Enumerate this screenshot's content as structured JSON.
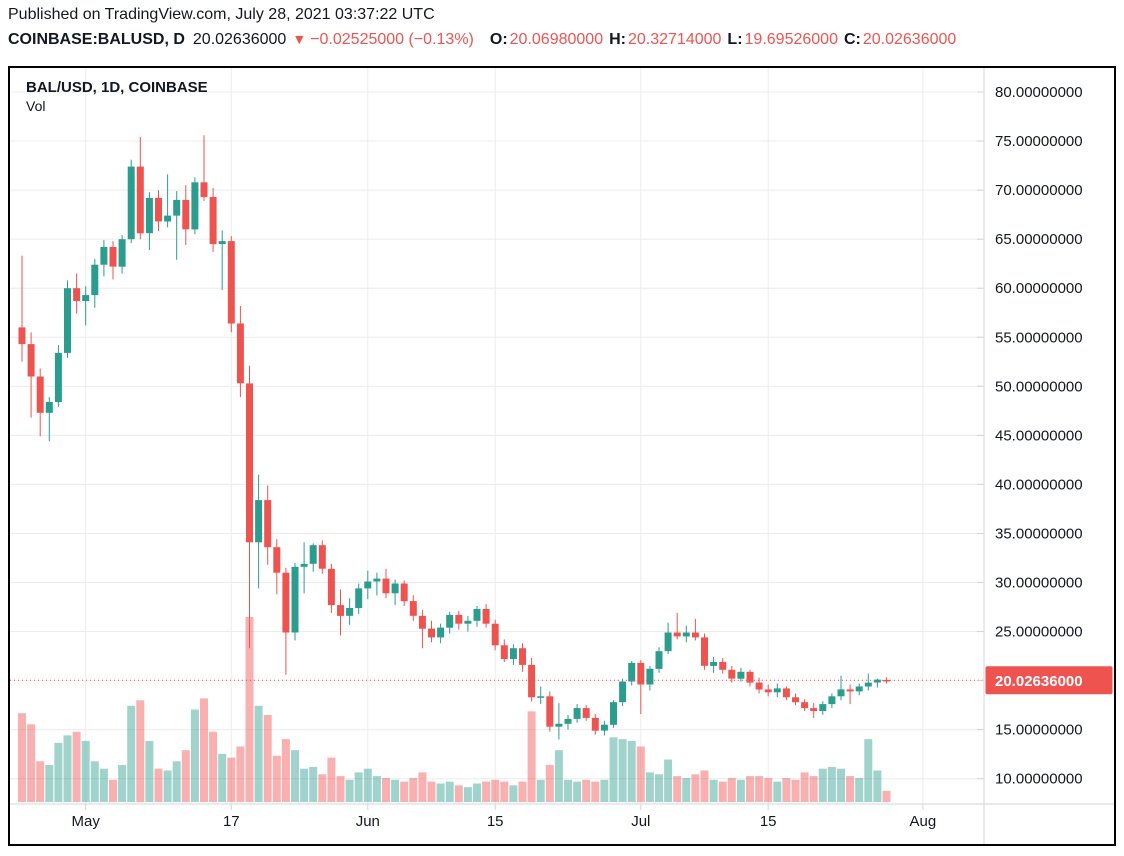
{
  "page": {
    "published_line": "Published on TradingView.com, July 28, 2021 03:37:22 UTC"
  },
  "quote_bar": {
    "symbol": "COINBASE:BALUSD, D",
    "last": "20.02636000",
    "down_arrow": "▼",
    "change": "−0.02525000 (−0.13%)",
    "ohlc": [
      {
        "label": "O:",
        "value": "20.06980000"
      },
      {
        "label": "H:",
        "value": "20.32714000"
      },
      {
        "label": "L:",
        "value": "19.69526000"
      },
      {
        "label": "C:",
        "value": "20.02636000"
      }
    ]
  },
  "chart": {
    "legend_symbol": "BAL/USD, 1D, COINBASE",
    "legend_study": "Vol",
    "price_axis_label": "20.02636000",
    "colors": {
      "up": "#2a9d8f",
      "down": "#ef5350",
      "price_line": "#ef5350",
      "price_label_bg": "#ef5350",
      "text": "#131722",
      "grid": "#ececec",
      "axis_line": "#d1d4dc",
      "border": "#000000"
    }
  },
  "chart_data": {
    "type": "candlestick",
    "title": "BAL/USD, 1D, COINBASE",
    "symbol": "BAL/USD",
    "interval": "1D",
    "exchange": "COINBASE",
    "current_price": 20.02636,
    "legend_position": "top-left",
    "grid": true,
    "y_axis": {
      "side": "right",
      "ticks": [
        80,
        75,
        70,
        65,
        60,
        55,
        50,
        45,
        40,
        35,
        30,
        25,
        20,
        15,
        10
      ],
      "decimals": 8,
      "visible_range": [
        7.4,
        82.2
      ]
    },
    "x_axis": {
      "start_date": "Apr 24",
      "end_date": "Jul 28",
      "labels": [
        {
          "day_index": 7,
          "label": "May"
        },
        {
          "day_index": 23,
          "label": "17"
        },
        {
          "day_index": 38,
          "label": "Jun"
        },
        {
          "day_index": 52,
          "label": "15"
        },
        {
          "day_index": 68,
          "label": "Jul"
        },
        {
          "day_index": 82,
          "label": "15"
        },
        {
          "day_index": 99,
          "label": "Aug"
        }
      ]
    },
    "volume_unit": "relative (0-100, axis unlabeled)",
    "candles_format": [
      "date",
      "open",
      "high",
      "low",
      "close",
      "volume_rel"
    ],
    "candles": [
      [
        "Apr 24",
        56.0,
        63.3,
        52.5,
        54.3,
        48
      ],
      [
        "Apr 25",
        54.3,
        55.5,
        46.8,
        51.0,
        42
      ],
      [
        "Apr 26",
        51.0,
        51.8,
        44.9,
        47.3,
        22
      ],
      [
        "Apr 27",
        47.3,
        48.9,
        44.4,
        48.4,
        20
      ],
      [
        "Apr 28",
        48.4,
        54.2,
        47.9,
        53.4,
        32
      ],
      [
        "Apr 29",
        53.4,
        60.8,
        52.9,
        60.0,
        36
      ],
      [
        "Apr 30",
        60.0,
        61.5,
        57.4,
        58.7,
        38
      ],
      [
        "May 1",
        58.7,
        60.2,
        56.2,
        59.3,
        33
      ],
      [
        "May 2",
        59.3,
        63.0,
        58.0,
        62.4,
        22
      ],
      [
        "May 3",
        62.4,
        64.9,
        61.2,
        64.2,
        18
      ],
      [
        "May 4",
        64.2,
        64.8,
        60.9,
        62.2,
        12
      ],
      [
        "May 5",
        62.2,
        65.4,
        61.5,
        65.0,
        20
      ],
      [
        "May 6",
        65.0,
        73.1,
        64.6,
        72.4,
        52
      ],
      [
        "May 7",
        72.4,
        75.4,
        65.0,
        65.6,
        55
      ],
      [
        "May 8",
        65.6,
        69.8,
        63.9,
        69.2,
        33
      ],
      [
        "May 9",
        69.2,
        70.0,
        65.8,
        66.8,
        18
      ],
      [
        "May 10",
        66.8,
        71.6,
        66.2,
        67.4,
        17
      ],
      [
        "May 11",
        67.4,
        69.9,
        62.9,
        69.0,
        22
      ],
      [
        "May 12",
        69.0,
        70.5,
        64.4,
        66.0,
        28
      ],
      [
        "May 13",
        66.0,
        71.3,
        65.5,
        70.8,
        50
      ],
      [
        "May 14",
        70.8,
        75.6,
        68.9,
        69.3,
        56
      ],
      [
        "May 15",
        69.3,
        70.2,
        63.7,
        64.5,
        38
      ],
      [
        "May 16",
        64.5,
        65.9,
        59.8,
        64.8,
        26
      ],
      [
        "May 17",
        64.8,
        65.3,
        55.5,
        56.4,
        24
      ],
      [
        "May 18",
        56.4,
        58.2,
        48.9,
        50.3,
        30
      ],
      [
        "May 19",
        50.3,
        52.1,
        23.3,
        34.1,
        100
      ],
      [
        "May 20",
        34.1,
        41.0,
        29.4,
        38.4,
        52
      ],
      [
        "May 21",
        38.4,
        39.9,
        31.8,
        33.6,
        47
      ],
      [
        "May 22",
        33.6,
        34.4,
        28.8,
        31.0,
        25
      ],
      [
        "May 23",
        31.0,
        31.5,
        20.6,
        24.9,
        34
      ],
      [
        "May 24",
        24.9,
        32.0,
        24.1,
        31.6,
        28
      ],
      [
        "May 25",
        31.6,
        34.1,
        28.9,
        31.9,
        18
      ],
      [
        "May 26",
        31.9,
        34.0,
        31.1,
        33.8,
        19
      ],
      [
        "May 27",
        33.8,
        34.3,
        30.9,
        31.4,
        15
      ],
      [
        "May 28",
        31.4,
        31.9,
        26.9,
        27.7,
        24
      ],
      [
        "May 29",
        27.7,
        29.3,
        24.6,
        26.6,
        14
      ],
      [
        "May 30",
        26.6,
        28.4,
        25.7,
        27.4,
        12
      ],
      [
        "May 31",
        27.4,
        29.9,
        26.8,
        29.4,
        16
      ],
      [
        "Jun 1",
        29.4,
        31.2,
        28.3,
        30.1,
        18
      ],
      [
        "Jun 2",
        30.1,
        31.0,
        28.7,
        30.4,
        14
      ],
      [
        "Jun 3",
        30.4,
        31.4,
        28.4,
        28.9,
        13
      ],
      [
        "Jun 4",
        28.9,
        30.3,
        27.7,
        29.9,
        12
      ],
      [
        "Jun 5",
        29.9,
        30.2,
        27.6,
        28.1,
        11
      ],
      [
        "Jun 6",
        28.1,
        28.7,
        26.1,
        26.6,
        13
      ],
      [
        "Jun 7",
        26.6,
        27.2,
        23.3,
        25.3,
        16
      ],
      [
        "Jun 8",
        25.3,
        26.1,
        23.9,
        24.4,
        11
      ],
      [
        "Jun 9",
        24.4,
        25.8,
        23.8,
        25.4,
        10
      ],
      [
        "Jun 10",
        25.4,
        27.0,
        24.8,
        26.7,
        11
      ],
      [
        "Jun 11",
        26.7,
        27.1,
        25.2,
        25.8,
        9
      ],
      [
        "Jun 12",
        25.8,
        26.6,
        25.0,
        26.1,
        8
      ],
      [
        "Jun 13",
        26.1,
        27.6,
        25.5,
        27.3,
        10
      ],
      [
        "Jun 14",
        27.3,
        27.8,
        25.4,
        25.8,
        11
      ],
      [
        "Jun 15",
        25.8,
        26.2,
        23.1,
        23.6,
        12
      ],
      [
        "Jun 16",
        23.6,
        24.2,
        21.9,
        22.2,
        11
      ],
      [
        "Jun 17",
        22.2,
        23.7,
        21.6,
        23.3,
        9
      ],
      [
        "Jun 18",
        23.3,
        23.8,
        20.9,
        21.6,
        11
      ],
      [
        "Jun 19",
        21.6,
        22.3,
        17.9,
        18.3,
        49
      ],
      [
        "Jun 20",
        18.3,
        19.4,
        17.6,
        18.4,
        12
      ],
      [
        "Jun 21",
        18.4,
        18.9,
        14.8,
        15.3,
        20
      ],
      [
        "Jun 22",
        15.3,
        17.7,
        14.0,
        15.6,
        28
      ],
      [
        "Jun 23",
        15.6,
        16.5,
        15.0,
        16.1,
        12
      ],
      [
        "Jun 24",
        16.1,
        17.6,
        15.7,
        17.2,
        11
      ],
      [
        "Jun 25",
        17.2,
        17.5,
        15.9,
        16.2,
        12
      ],
      [
        "Jun 26",
        16.2,
        16.6,
        14.5,
        14.9,
        11
      ],
      [
        "Jun 27",
        14.9,
        15.9,
        14.4,
        15.5,
        12
      ],
      [
        "Jun 28",
        15.5,
        18.0,
        15.2,
        17.8,
        35
      ],
      [
        "Jun 29",
        17.8,
        20.2,
        17.4,
        19.9,
        34
      ],
      [
        "Jun 30",
        19.9,
        22.0,
        19.5,
        21.8,
        33
      ],
      [
        "Jul 1",
        21.8,
        22.1,
        16.6,
        19.6,
        30
      ],
      [
        "Jul 2",
        19.6,
        21.5,
        19.0,
        21.2,
        16
      ],
      [
        "Jul 3",
        21.2,
        23.4,
        20.8,
        23.0,
        15
      ],
      [
        "Jul 4",
        23.0,
        25.9,
        22.7,
        24.9,
        23
      ],
      [
        "Jul 5",
        24.9,
        26.9,
        24.2,
        24.5,
        14
      ],
      [
        "Jul 6",
        24.5,
        25.6,
        23.9,
        24.9,
        13
      ],
      [
        "Jul 7",
        24.9,
        26.3,
        24.1,
        24.4,
        15
      ],
      [
        "Jul 8",
        24.4,
        24.8,
        21.1,
        21.5,
        17
      ],
      [
        "Jul 9",
        21.5,
        22.4,
        20.8,
        21.9,
        12
      ],
      [
        "Jul 10",
        21.9,
        22.3,
        20.7,
        21.1,
        11
      ],
      [
        "Jul 11",
        21.1,
        21.5,
        19.8,
        20.2,
        13
      ],
      [
        "Jul 12",
        20.2,
        21.3,
        19.9,
        20.9,
        12
      ],
      [
        "Jul 13",
        20.9,
        21.1,
        19.4,
        19.8,
        14
      ],
      [
        "Jul 14",
        19.8,
        20.3,
        18.7,
        19.1,
        14
      ],
      [
        "Jul 15",
        19.1,
        19.6,
        18.4,
        18.8,
        13
      ],
      [
        "Jul 16",
        18.8,
        19.7,
        18.3,
        19.2,
        11
      ],
      [
        "Jul 17",
        19.2,
        19.4,
        18.0,
        18.3,
        13
      ],
      [
        "Jul 18",
        18.3,
        18.7,
        17.5,
        17.8,
        12
      ],
      [
        "Jul 19",
        17.8,
        18.1,
        16.9,
        17.2,
        16
      ],
      [
        "Jul 20",
        17.2,
        17.7,
        16.2,
        16.9,
        14
      ],
      [
        "Jul 21",
        16.9,
        17.9,
        16.5,
        17.6,
        18
      ],
      [
        "Jul 22",
        17.6,
        18.7,
        17.2,
        18.4,
        19
      ],
      [
        "Jul 23",
        18.4,
        20.5,
        18.0,
        19.1,
        18
      ],
      [
        "Jul 24",
        19.1,
        19.6,
        17.6,
        18.9,
        14
      ],
      [
        "Jul 25",
        18.9,
        19.7,
        18.5,
        19.4,
        13
      ],
      [
        "Jul 26",
        19.4,
        20.7,
        19.0,
        19.8,
        34
      ],
      [
        "Jul 27",
        19.8,
        20.2,
        19.3,
        20.1,
        17
      ],
      [
        "Jul 28",
        20.0698,
        20.32714,
        19.69526,
        20.02636,
        6
      ]
    ]
  }
}
